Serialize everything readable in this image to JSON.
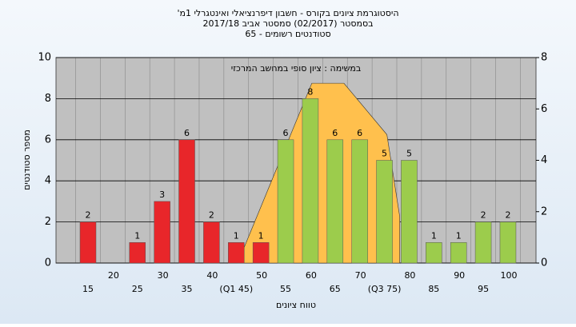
{
  "chart_data": {
    "type": "bar",
    "title": "'היסטוגרמת ציונים בקורס - חשבון דיפרנציאלי ואינטגרלי 1מ",
    "subtitle": "בסמסטר  (02/2017)  סמסטר אביב 2017/18",
    "subtitle2": "סטודנטים רשומים - 65",
    "annotation": "במשימה : ציון סופי במחשב המרכזי",
    "x_label": "טווח ציונים",
    "y_label": "מספר סטודנטים",
    "categories": [
      "15",
      "20",
      "25",
      "30",
      "35",
      "40",
      "(Q1 45)",
      "50",
      "55",
      "60",
      "65",
      "70",
      "(Q3 75)",
      "80",
      "85",
      "90",
      "95",
      "100"
    ],
    "values": [
      2,
      null,
      1,
      3,
      6,
      2,
      1,
      1,
      6,
      8,
      6,
      6,
      5,
      5,
      1,
      1,
      2,
      2
    ],
    "colors": [
      "#e8262a",
      "#e8262a",
      "#e8262a",
      "#e8262a",
      "#e8262a",
      "#e8262a",
      "#e8262a",
      "#e8262a",
      "#9ccc4c",
      "#9ccc4c",
      "#9ccc4c",
      "#9ccc4c",
      "#9ccc4c",
      "#9ccc4c",
      "#9ccc4c",
      "#9ccc4c",
      "#9ccc4c",
      "#9ccc4c"
    ],
    "ylim": [
      0,
      10
    ],
    "yticks": [
      0,
      2,
      4,
      6,
      8,
      10
    ],
    "y2lim": [
      0,
      8
    ],
    "y2ticks": [
      0,
      2,
      4,
      6,
      8
    ],
    "overlay": {
      "type": "area",
      "axis": "y2",
      "color": "#ffc04d",
      "x": [
        45.3,
        60.3,
        66.8,
        75.5,
        78.1
      ],
      "values": [
        0,
        7,
        7,
        5,
        1.8
      ]
    },
    "grid": true
  }
}
